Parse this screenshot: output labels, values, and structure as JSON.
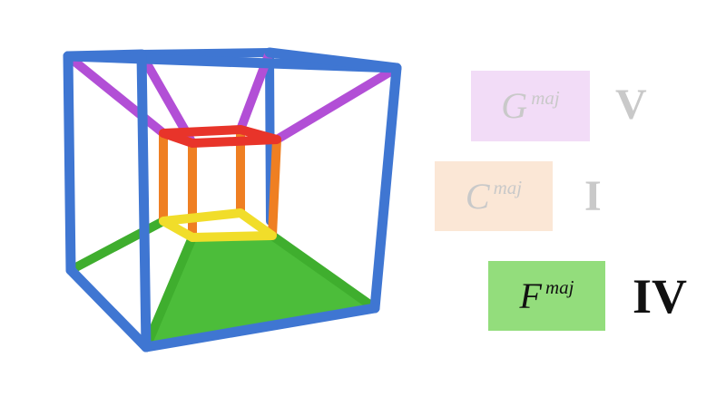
{
  "chords": [
    {
      "letter": "G",
      "quality": "maj",
      "numeral": "V",
      "state": "faded",
      "box_color": "#f2dcf7",
      "text_color": "#c9c9c9",
      "numeral_color": "#c9c9c9"
    },
    {
      "letter": "C",
      "quality": "maj",
      "numeral": "I",
      "state": "faded",
      "box_color": "#fbe7d6",
      "text_color": "#c9c9c9",
      "numeral_color": "#c9c9c9"
    },
    {
      "letter": "F",
      "quality": "maj",
      "numeral": "IV",
      "state": "active",
      "box_color": "#93dd7c",
      "text_color": "#111111",
      "numeral_color": "#111111"
    }
  ],
  "tesseract": {
    "outer_cube_color": "#3f76d2",
    "top_face_edges_color": "#b24fd6",
    "inner_cube_top_color": "#e8342a",
    "inner_cube_vertical_color": "#ef7f22",
    "inner_cube_bottom_color": "#f1dd2a",
    "bottom_face_edges_color": "#3fae2e",
    "highlighted_cell_color": "#4cbd3a"
  }
}
